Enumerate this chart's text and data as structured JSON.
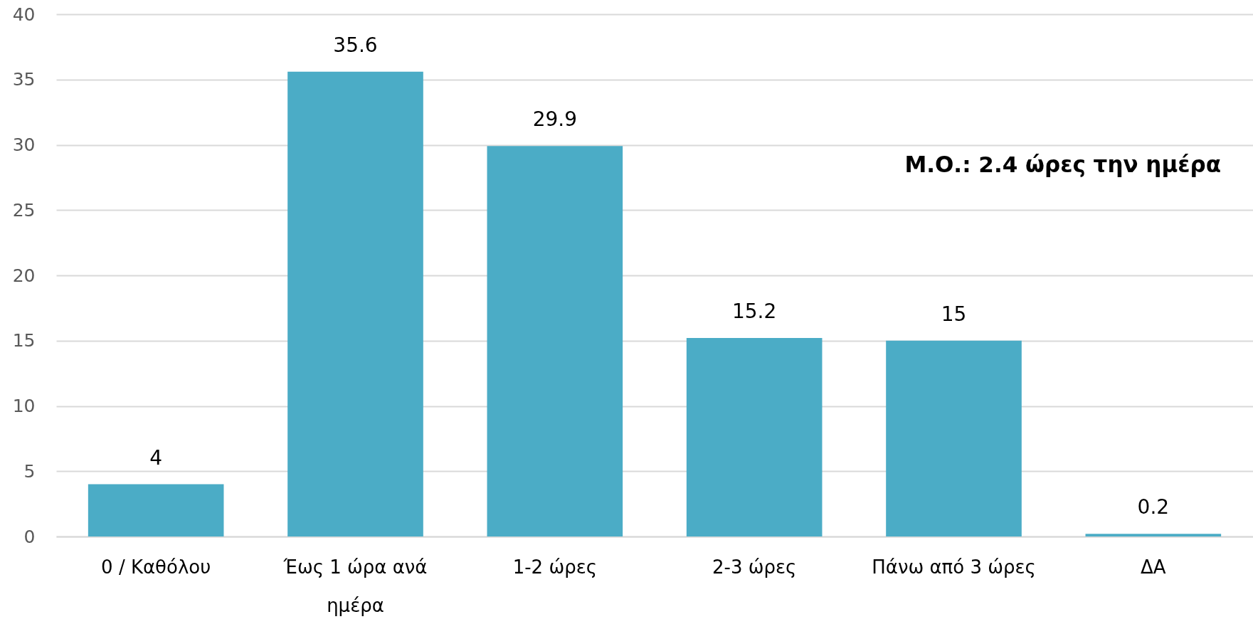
{
  "chart_data": {
    "type": "bar",
    "categories": [
      "0 / Καθόλου",
      "Έως 1 ώρα ανά ημέρα",
      "1-2 ώρες",
      "2-3 ώρες",
      "Πάνω από 3 ώρες",
      "ΔΑ"
    ],
    "values": [
      4,
      35.6,
      29.9,
      15.2,
      15,
      0.2
    ],
    "color": "#4bacc6",
    "ylim": [
      0,
      40
    ],
    "yticks": [
      0,
      5,
      10,
      15,
      20,
      25,
      30,
      35,
      40
    ],
    "grid": "y",
    "data_labels": true,
    "annotations": [
      "Μ.Ο.: 2.4 ώρες την ημέρα"
    ]
  }
}
